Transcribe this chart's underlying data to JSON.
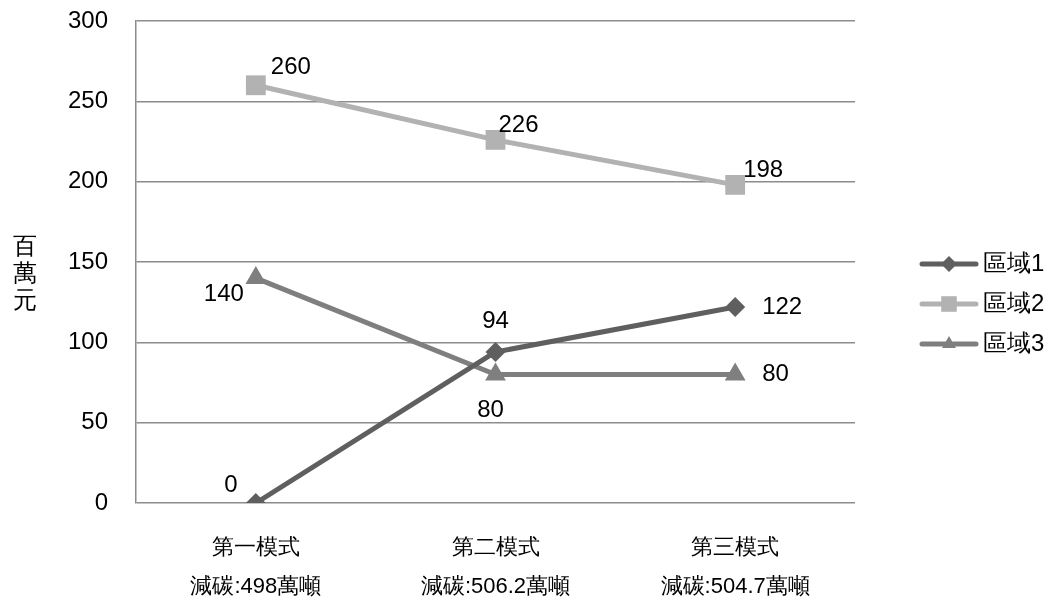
{
  "chart_data": {
    "type": "line",
    "ylabel": "百萬元",
    "categories": [
      "第一模式",
      "第二模式",
      "第三模式"
    ],
    "annotations": [
      "減碳:498萬噸",
      "減碳:506.2萬噸",
      "減碳:504.7萬噸"
    ],
    "series": [
      {
        "name": "區域1",
        "color": "#5f5f5f",
        "marker": "diamond",
        "values": [
          0,
          94,
          122
        ]
      },
      {
        "name": "區域2",
        "color": "#b2b2b2",
        "marker": "square",
        "values": [
          260,
          226,
          198
        ]
      },
      {
        "name": "區域3",
        "color": "#7f7f7f",
        "marker": "triangle",
        "values": [
          140,
          80,
          80
        ]
      }
    ],
    "ylim": [
      0,
      300
    ],
    "yticks": [
      0,
      50,
      100,
      150,
      200,
      250,
      300
    ],
    "grid": "y",
    "legend": "right",
    "data_labels": true
  }
}
